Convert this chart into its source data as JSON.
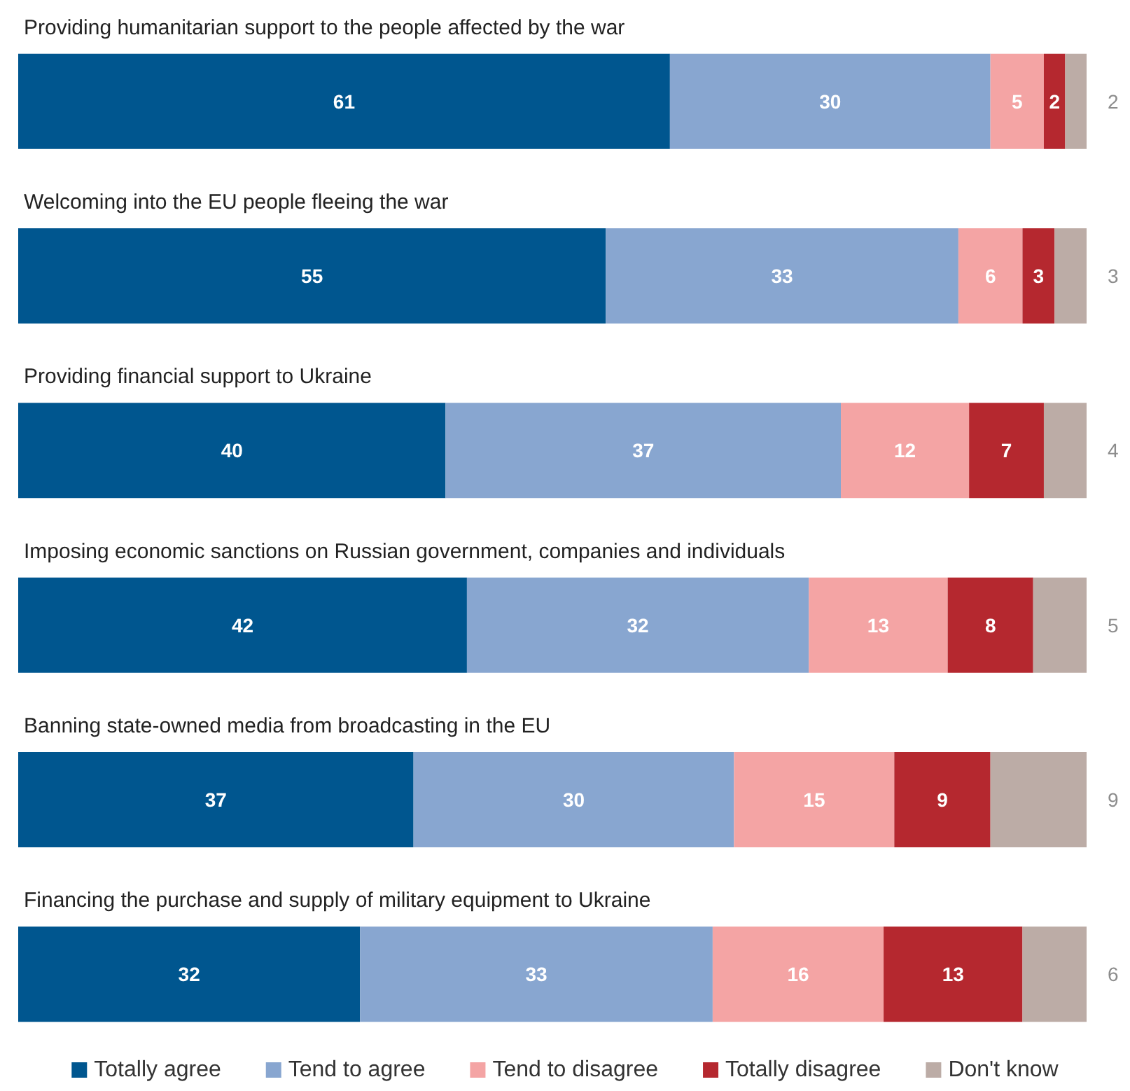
{
  "chart_data": {
    "type": "bar",
    "orientation": "horizontal",
    "stacked": true,
    "categories": [
      "Providing humanitarian support to the people affected by the war",
      "Welcoming into the EU people fleeing the war",
      "Providing financial support to Ukraine",
      "Imposing economic sanctions on Russian government, companies and individuals",
      "Banning state-owned media from broadcasting in the EU",
      "Financing the purchase and supply of military equipment to Ukraine"
    ],
    "series": [
      {
        "name": "Totally agree",
        "color": "#00568f",
        "values": [
          61,
          55,
          40,
          42,
          37,
          32
        ]
      },
      {
        "name": "Tend to agree",
        "color": "#88a6d0",
        "values": [
          30,
          33,
          37,
          32,
          30,
          33
        ]
      },
      {
        "name": "Tend to disagree",
        "color": "#f4a4a4",
        "values": [
          5,
          6,
          12,
          13,
          15,
          16
        ]
      },
      {
        "name": "Totally disagree",
        "color": "#b5282f",
        "values": [
          2,
          3,
          7,
          8,
          9,
          13
        ]
      },
      {
        "name": "Don't know",
        "color": "#bcaca6",
        "values": [
          2,
          3,
          4,
          5,
          9,
          6
        ]
      }
    ],
    "xlim": [
      0,
      100
    ],
    "tick_labels": "y",
    "data_labels": true,
    "legend": "bottom"
  }
}
